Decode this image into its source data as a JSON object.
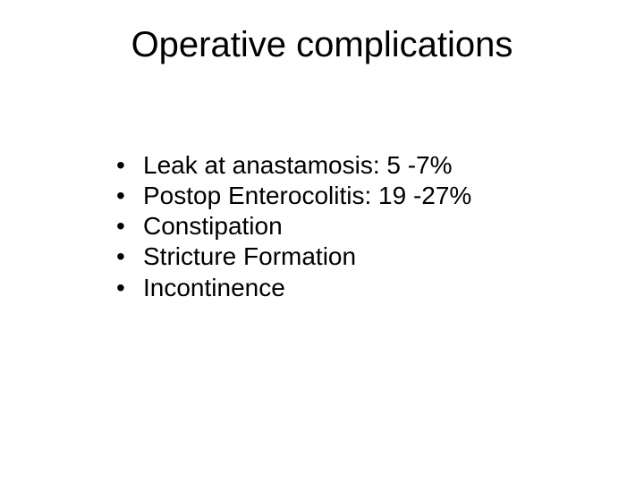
{
  "slide": {
    "title": "Operative complications",
    "bullets": [
      "Leak at anastamosis:  5 -7%",
      "Postop Enterocolitis:  19 -27%",
      "Constipation",
      "Stricture Formation",
      "Incontinence"
    ]
  },
  "styling": {
    "background_color": "#ffffff",
    "text_color": "#000000",
    "title_fontsize": 40,
    "title_fontweight": "normal",
    "bullet_fontsize": 28,
    "font_family": "Arial, Helvetica, sans-serif",
    "title_align": "center",
    "bullet_marker": "•",
    "slide_width": 720,
    "slide_height": 540,
    "title_top_padding": 28,
    "title_bottom_margin": 95,
    "list_left_padding": 130,
    "bullet_indent": 30,
    "line_height": 1.22
  }
}
